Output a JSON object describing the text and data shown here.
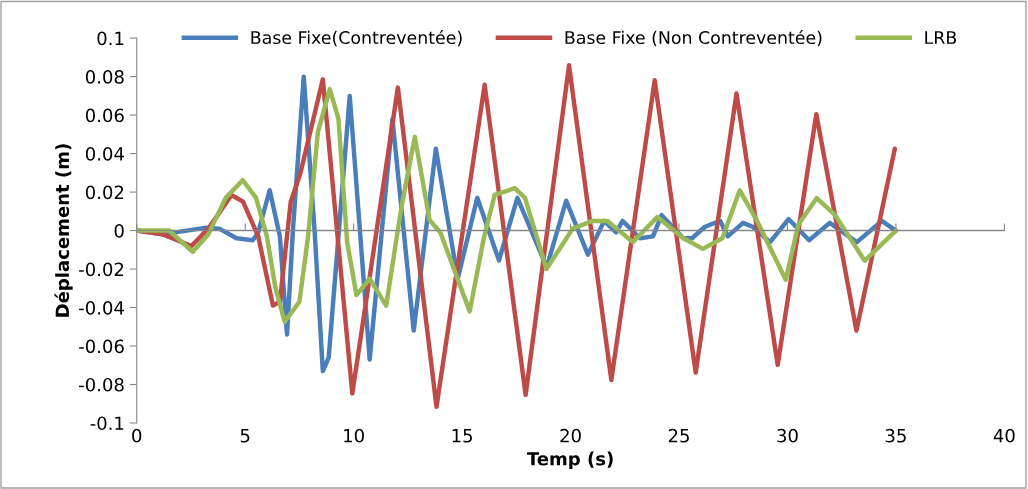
{
  "chart_data": {
    "type": "line",
    "xlabel": "Temp (s)",
    "ylabel": "Déplacement (m)",
    "xlim": [
      0,
      40
    ],
    "xticks": [
      0,
      5,
      10,
      15,
      20,
      25,
      30,
      35,
      40
    ],
    "ylim": [
      -0.1,
      0.1
    ],
    "yticks": [
      -0.1,
      -0.08,
      -0.06,
      -0.04,
      -0.02,
      0,
      0.02,
      0.04,
      0.06,
      0.08,
      0.1
    ],
    "grid": false,
    "ref_lines": [
      {
        "axis": "y",
        "value": 0
      }
    ],
    "legend": "top",
    "marker": "none",
    "line_style": "solid",
    "series": [
      {
        "name": "Base Fixe(Contreventée)",
        "color": "#4a7ebb",
        "x": [
          0,
          1.2,
          3.2,
          3.8,
          4.6,
          5.35,
          5.6,
          6.13,
          6.6,
          6.93,
          7.2,
          7.7,
          8.2,
          8.58,
          8.85,
          9.82,
          10.74,
          11.79,
          12.77,
          13.79,
          14.8,
          15.7,
          16.7,
          17.55,
          18.9,
          19.8,
          20.8,
          21.55,
          22.1,
          22.4,
          23.2,
          23.8,
          24.2,
          25.2,
          25.6,
          26.2,
          26.9,
          27.25,
          27.95,
          28.4,
          29.2,
          30.05,
          31.0,
          31.95,
          33.2,
          34.35,
          35
        ],
        "values": [
          0,
          -0.002,
          0.0015,
          0.001,
          -0.004,
          -0.005,
          -0.001,
          0.021,
          -0.003,
          -0.054,
          0,
          0.08,
          0,
          -0.073,
          -0.066,
          0.07,
          -0.067,
          0.058,
          -0.052,
          0.0425,
          -0.025,
          0.017,
          -0.0155,
          0.017,
          -0.019,
          0.0155,
          -0.0125,
          0.005,
          -0.001,
          0.005,
          -0.004,
          -0.003,
          0.008,
          -0.004,
          -0.004,
          0.002,
          0.005,
          -0.003,
          0.004,
          0.002,
          -0.006,
          0.006,
          -0.005,
          0.004,
          -0.006,
          0.005,
          0
        ]
      },
      {
        "name": "Base Fixe (Non Contreventée)",
        "color": "#be4b48",
        "x": [
          0,
          1.2,
          2.52,
          3.3,
          4.37,
          4.9,
          5.6,
          6.28,
          6.6,
          7.1,
          7.55,
          8.58,
          9.94,
          12.04,
          13.82,
          16.04,
          17.93,
          19.93,
          21.88,
          23.88,
          25.77,
          27.65,
          29.55,
          31.33,
          33.18,
          34.95
        ],
        "values": [
          0,
          -0.002,
          -0.008,
          0.001,
          0.0185,
          0.015,
          -0.003,
          -0.039,
          -0.037,
          0.015,
          0.03,
          0.0786,
          -0.0847,
          0.0743,
          -0.0916,
          0.0758,
          -0.0854,
          0.0859,
          -0.0777,
          0.0781,
          -0.0738,
          0.0712,
          -0.0698,
          0.0605,
          -0.052,
          0.0425
        ]
      },
      {
        "name": "LRB",
        "color": "#98b954",
        "x": [
          0,
          1.5,
          2.58,
          3.3,
          4.1,
          4.89,
          5.5,
          6.0,
          6.4,
          6.82,
          7.5,
          7.9,
          8.35,
          8.9,
          9.3,
          9.7,
          10.13,
          10.74,
          11.5,
          12.2,
          12.82,
          13.5,
          14.0,
          15.35,
          16.0,
          16.5,
          17.43,
          17.9,
          18.89,
          20.1,
          21.0,
          21.7,
          22.87,
          24.0,
          25.2,
          26.1,
          27.0,
          27.8,
          28.6,
          29.92,
          30.5,
          31.35,
          32.2,
          33.56,
          35
        ],
        "values": [
          0,
          0,
          -0.011,
          -0.002,
          0.017,
          0.0262,
          0.017,
          -0.003,
          -0.03,
          -0.0474,
          -0.037,
          -0.003,
          0.051,
          0.0735,
          0.058,
          -0.006,
          -0.0335,
          -0.025,
          -0.039,
          0.012,
          0.0487,
          0.0055,
          -0.001,
          -0.042,
          -0.004,
          0.0185,
          0.022,
          0.017,
          -0.02,
          0.001,
          0.005,
          0.005,
          -0.006,
          0.007,
          -0.004,
          -0.0095,
          -0.004,
          0.0209,
          0.005,
          -0.0256,
          0.003,
          0.0169,
          0.008,
          -0.0157,
          0
        ]
      }
    ]
  }
}
